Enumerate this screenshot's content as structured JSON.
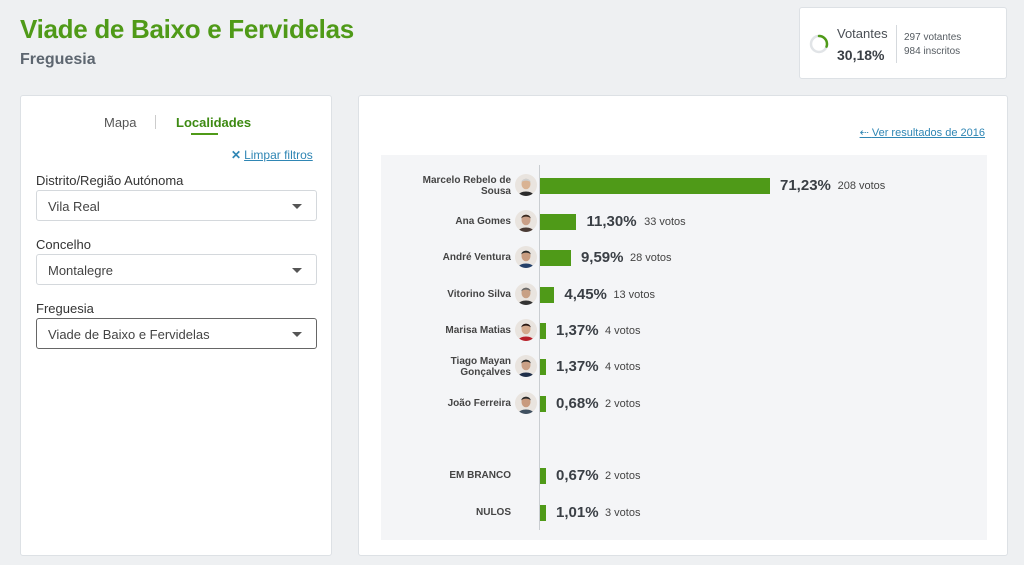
{
  "header": {
    "title": "Viade de Baixo e Fervidelas",
    "subtitle": "Freguesia"
  },
  "turnout": {
    "label": "Votantes",
    "percent": "30,18%",
    "voters": "297 votantes",
    "registered": "984 inscritos",
    "ratio": 0.3018,
    "ring_color": "#4f9a18"
  },
  "filters": {
    "tabs": [
      "Mapa",
      "Localidades"
    ],
    "active_tab": "Localidades",
    "clear_label": "Limpar filtros",
    "fields": [
      {
        "label": "Distrito/Região Autónoma",
        "value": "Vila Real"
      },
      {
        "label": "Concelho",
        "value": "Montalegre"
      },
      {
        "label": "Freguesia",
        "value": "Viade de Baixo e Fervidelas"
      }
    ]
  },
  "results": {
    "previous_link": "Ver resultados de 2016",
    "bar_color": "#4f9a18",
    "candidates": [
      {
        "name": "Marcelo Rebelo de Sousa",
        "name_lines": [
          "Marcelo Rebelo de",
          "Sousa"
        ],
        "percent": 71.23,
        "percent_label": "71,23%",
        "votes_label": "208 votos",
        "avatar": "avatar-marcelo"
      },
      {
        "name": "Ana Gomes",
        "name_lines": [
          "Ana Gomes"
        ],
        "percent": 11.3,
        "percent_label": "11,30%",
        "votes_label": "33 votos",
        "avatar": "avatar-ana"
      },
      {
        "name": "André Ventura",
        "name_lines": [
          "André Ventura"
        ],
        "percent": 9.59,
        "percent_label": "9,59%",
        "votes_label": "28 votos",
        "avatar": "avatar-andre"
      },
      {
        "name": "Vitorino Silva",
        "name_lines": [
          "Vitorino Silva"
        ],
        "percent": 4.45,
        "percent_label": "4,45%",
        "votes_label": "13 votos",
        "avatar": "avatar-vitorino"
      },
      {
        "name": "Marisa Matias",
        "name_lines": [
          "Marisa Matias"
        ],
        "percent": 1.37,
        "percent_label": "1,37%",
        "votes_label": "4 votos",
        "avatar": "avatar-marisa"
      },
      {
        "name": "Tiago Mayan Gonçalves",
        "name_lines": [
          "Tiago Mayan",
          "Gonçalves"
        ],
        "percent": 1.37,
        "percent_label": "1,37%",
        "votes_label": "4 votos",
        "avatar": "avatar-tiago"
      },
      {
        "name": "João Ferreira",
        "name_lines": [
          "João Ferreira"
        ],
        "percent": 0.68,
        "percent_label": "0,68%",
        "votes_label": "2 votos",
        "avatar": "avatar-joao"
      }
    ],
    "other": [
      {
        "name": "EM BRANCO",
        "name_lines": [
          "EM BRANCO"
        ],
        "percent": 0.67,
        "percent_label": "0,67%",
        "votes_label": "2 votos"
      },
      {
        "name": "NULOS",
        "name_lines": [
          "NULOS"
        ],
        "percent": 1.01,
        "percent_label": "1,01%",
        "votes_label": "3 votos"
      }
    ]
  },
  "chart_data": {
    "type": "bar",
    "categories": [
      "Marcelo Rebelo de Sousa",
      "Ana Gomes",
      "André Ventura",
      "Vitorino Silva",
      "Marisa Matias",
      "Tiago Mayan Gonçalves",
      "João Ferreira",
      "EM BRANCO",
      "NULOS"
    ],
    "values": [
      71.23,
      11.3,
      9.59,
      4.45,
      1.37,
      1.37,
      0.68,
      0.67,
      1.01
    ],
    "votes": [
      208,
      33,
      28,
      13,
      4,
      4,
      2,
      2,
      3
    ]
  }
}
